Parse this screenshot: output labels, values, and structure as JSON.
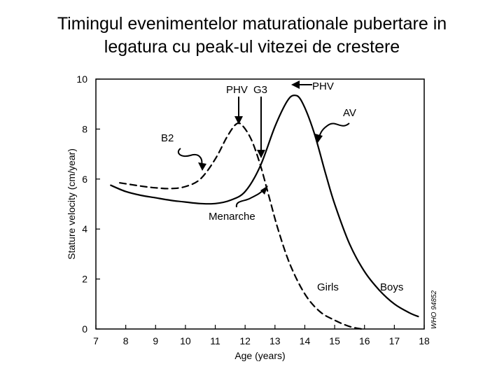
{
  "slide": {
    "title_line1": "Timingul evenimentelor maturationale pubertare in",
    "title_line2": "legatura cu peak-ul vitezei de crestere"
  },
  "chart_data": {
    "type": "line",
    "xlabel": "Age (years)",
    "ylabel": "Stature velocity (cm/year)",
    "xlim": [
      7,
      18
    ],
    "ylim": [
      0,
      10
    ],
    "x_ticks": [
      7,
      8,
      9,
      10,
      11,
      12,
      13,
      14,
      15,
      16,
      17,
      18
    ],
    "y_ticks": [
      0,
      2,
      4,
      6,
      8,
      10
    ],
    "grid": false,
    "series": [
      {
        "name": "Boys",
        "line_style": "solid",
        "points": [
          [
            7.5,
            5.75
          ],
          [
            8.0,
            5.5
          ],
          [
            8.5,
            5.35
          ],
          [
            9.0,
            5.25
          ],
          [
            9.5,
            5.15
          ],
          [
            10.0,
            5.08
          ],
          [
            10.5,
            5.02
          ],
          [
            11.0,
            5.02
          ],
          [
            11.5,
            5.15
          ],
          [
            12.0,
            5.5
          ],
          [
            12.5,
            6.5
          ],
          [
            13.0,
            8.1
          ],
          [
            13.4,
            9.1
          ],
          [
            13.65,
            9.35
          ],
          [
            13.9,
            9.1
          ],
          [
            14.3,
            7.9
          ],
          [
            14.7,
            6.2
          ],
          [
            15.0,
            5.0
          ],
          [
            15.5,
            3.4
          ],
          [
            16.0,
            2.3
          ],
          [
            16.5,
            1.55
          ],
          [
            17.0,
            1.0
          ],
          [
            17.5,
            0.65
          ],
          [
            17.8,
            0.5
          ]
        ]
      },
      {
        "name": "Girls",
        "line_style": "dashed",
        "points": [
          [
            7.8,
            5.85
          ],
          [
            8.5,
            5.72
          ],
          [
            9.0,
            5.65
          ],
          [
            9.5,
            5.62
          ],
          [
            10.0,
            5.7
          ],
          [
            10.5,
            6.0
          ],
          [
            11.0,
            6.8
          ],
          [
            11.4,
            7.7
          ],
          [
            11.7,
            8.2
          ],
          [
            11.9,
            8.15
          ],
          [
            12.2,
            7.6
          ],
          [
            12.5,
            6.6
          ],
          [
            12.8,
            5.3
          ],
          [
            13.1,
            4.0
          ],
          [
            13.5,
            2.6
          ],
          [
            14.0,
            1.4
          ],
          [
            14.5,
            0.7
          ],
          [
            15.0,
            0.35
          ],
          [
            15.5,
            0.1
          ],
          [
            15.9,
            0.0
          ]
        ]
      }
    ],
    "annotations": [
      {
        "text": "PHV",
        "target": [
          13.65,
          9.35
        ]
      },
      {
        "text": "PHV",
        "target": [
          11.7,
          8.2
        ]
      },
      {
        "text": "G3",
        "target": [
          12.5,
          6.7
        ]
      },
      {
        "text": "B2",
        "target": [
          10.8,
          6.2
        ]
      },
      {
        "text": "AV",
        "target": [
          14.5,
          7.6
        ]
      },
      {
        "text": "Menarche",
        "target": [
          12.7,
          5.6
        ]
      },
      {
        "text": "Girls",
        "target": null
      },
      {
        "text": "Boys",
        "target": null
      }
    ],
    "watermark": "WHO 94852"
  }
}
